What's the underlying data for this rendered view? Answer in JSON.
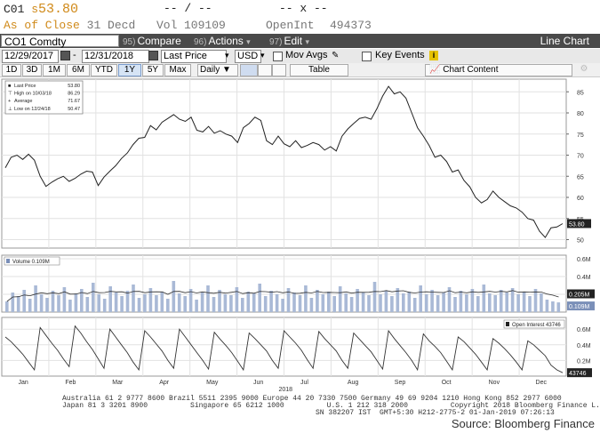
{
  "header": {
    "ticker": "C01",
    "price_prefix": "s",
    "price": "53.80",
    "change_dashes": "-- / --",
    "x_dashes": "-- x --",
    "asof_label": "As of Close",
    "asof_date": "31 Decd",
    "vol_label": "Vol",
    "vol_value": "109109",
    "openint_label": "OpenInt",
    "openint_value": "494373"
  },
  "menubar": {
    "security": "CO1 Comdty",
    "compare_num": "95)",
    "compare": "Compare",
    "actions_num": "96)",
    "actions": "Actions",
    "edit_num": "97)",
    "edit": "Edit",
    "view": "Line Chart"
  },
  "controls": {
    "start_date": "12/29/2017",
    "end_date": "12/31/2018",
    "field": "Last Price",
    "currency": "USD",
    "mov_avgs": "Mov Avgs",
    "key_events": "Key Events"
  },
  "periods": [
    "1D",
    "3D",
    "1M",
    "6M",
    "YTD",
    "1Y",
    "5Y",
    "Max"
  ],
  "selected_period": "1Y",
  "frequency": "Daily",
  "table_label": "Table",
  "chart_content_label": "Chart Content",
  "legend": {
    "last_price_label": "Last Price",
    "last_price": "53.80",
    "high_label": "High on 10/03/18",
    "high": "86.29",
    "avg_label": "Average",
    "avg": "71.67",
    "low_label": "Low on 12/24/18",
    "low": "50.47"
  },
  "volume_label": "Volume 0.109M",
  "oi_label": "Open Interest 43746",
  "current_price_tag": "53.80",
  "footer": {
    "line1": "Australia 61 2 9777 8600 Brazil 5511 2395 9000 Europe 44 20 7330 7500 Germany 49 69 9204 1210 Hong Kong 852 2977 6000",
    "line2": "Japan 81 3 3201 8900          Singapore 65 6212 1000          U.S. 1 212 318 2000          Copyright 2018 Bloomberg Finance L.P.",
    "line3": "SN 382207 IST  GMT+5:30 H212-2775-2 01-Jan-2019 07:26:13"
  },
  "source": "Source: Bloomberg Finance",
  "colors": {
    "price_line": "#222222",
    "volume_bar": "#a9b9d6",
    "menubar": "#4a4a4a",
    "amber": "#d08a1a"
  },
  "chart_data": [
    {
      "type": "line",
      "name": "Last Price",
      "x_labels": [
        "Jan",
        "Feb",
        "Mar",
        "Apr",
        "May",
        "Jun",
        "Jul",
        "Aug",
        "Sep",
        "Oct",
        "Nov",
        "Dec"
      ],
      "year_label": "2018",
      "y_ticks": [
        50,
        55,
        60,
        65,
        70,
        75,
        80,
        85
      ],
      "ylim": [
        48,
        88
      ],
      "values": [
        67.0,
        69.5,
        70.0,
        69.0,
        70.2,
        68.8,
        65.0,
        62.6,
        63.6,
        64.4,
        65.0,
        63.8,
        64.5,
        65.5,
        66.2,
        66.0,
        62.8,
        64.8,
        66.2,
        67.5,
        69.2,
        70.5,
        72.5,
        74.0,
        74.2,
        77.0,
        76.0,
        77.8,
        78.7,
        79.6,
        78.5,
        78.0,
        79.0,
        75.9,
        75.5,
        76.8,
        75.2,
        75.8,
        75.0,
        74.5,
        73.0,
        76.5,
        77.5,
        79.0,
        78.2,
        73.4,
        72.5,
        74.5,
        72.7,
        72.0,
        73.4,
        71.8,
        72.3,
        73.0,
        72.5,
        71.2,
        72.0,
        71.0,
        74.5,
        76.2,
        77.5,
        78.7,
        79.0,
        78.5,
        81.0,
        84.0,
        86.3,
        84.5,
        85.0,
        83.5,
        80.0,
        76.5,
        74.5,
        72.3,
        69.5,
        70.0,
        68.5,
        66.0,
        66.5,
        64.0,
        62.5,
        60.0,
        58.7,
        59.5,
        61.5,
        60.0,
        59.0,
        58.0,
        57.5,
        56.5,
        55.0,
        54.6,
        52.0,
        50.5,
        52.8,
        53.0,
        53.8
      ],
      "last": 53.8,
      "high": 86.29,
      "average": 71.67,
      "low": 50.47
    },
    {
      "type": "bar",
      "name": "Volume",
      "y_ticks": [
        "0.2M",
        "0.4M",
        "0.6M"
      ],
      "ylim": [
        0,
        0.6
      ],
      "reference_labels": [
        "0.205M",
        "0.109M"
      ],
      "values": [
        0.12,
        0.22,
        0.18,
        0.25,
        0.15,
        0.3,
        0.2,
        0.16,
        0.24,
        0.19,
        0.28,
        0.14,
        0.21,
        0.26,
        0.17,
        0.33,
        0.2,
        0.15,
        0.29,
        0.22,
        0.18,
        0.24,
        0.31,
        0.16,
        0.2,
        0.27,
        0.19,
        0.23,
        0.15,
        0.35,
        0.21,
        0.18,
        0.26,
        0.14,
        0.22,
        0.3,
        0.17,
        0.25,
        0.2,
        0.19,
        0.28,
        0.16,
        0.23,
        0.21,
        0.32,
        0.18,
        0.24,
        0.2,
        0.15,
        0.27,
        0.22,
        0.19,
        0.3,
        0.16,
        0.25,
        0.2,
        0.23,
        0.18,
        0.29,
        0.21,
        0.17,
        0.26,
        0.22,
        0.19,
        0.34,
        0.2,
        0.24,
        0.18,
        0.27,
        0.21,
        0.23,
        0.16,
        0.3,
        0.2,
        0.25,
        0.19,
        0.22,
        0.28,
        0.17,
        0.24,
        0.2,
        0.26,
        0.18,
        0.31,
        0.21,
        0.19,
        0.25,
        0.22,
        0.27,
        0.2,
        0.23,
        0.18,
        0.26,
        0.21,
        0.14,
        0.12,
        0.109
      ]
    },
    {
      "type": "line",
      "name": "Open Interest",
      "y_ticks": [
        "0.2M",
        "0.4M",
        "0.6M"
      ],
      "ylim": [
        0,
        0.75
      ],
      "reference_labels": [
        "43746"
      ],
      "values": [
        0.5,
        0.44,
        0.36,
        0.28,
        0.18,
        0.08,
        0.62,
        0.52,
        0.42,
        0.33,
        0.22,
        0.12,
        0.64,
        0.55,
        0.44,
        0.34,
        0.22,
        0.1,
        0.6,
        0.5,
        0.4,
        0.3,
        0.18,
        0.08,
        0.58,
        0.5,
        0.41,
        0.32,
        0.2,
        0.1,
        0.6,
        0.5,
        0.4,
        0.3,
        0.2,
        0.09,
        0.56,
        0.47,
        0.39,
        0.3,
        0.19,
        0.08,
        0.55,
        0.48,
        0.4,
        0.32,
        0.2,
        0.1,
        0.58,
        0.5,
        0.42,
        0.33,
        0.21,
        0.1,
        0.57,
        0.48,
        0.4,
        0.32,
        0.2,
        0.1,
        0.55,
        0.47,
        0.39,
        0.31,
        0.2,
        0.09,
        0.58,
        0.48,
        0.39,
        0.3,
        0.2,
        0.08,
        0.54,
        0.45,
        0.38,
        0.3,
        0.19,
        0.08,
        0.5,
        0.44,
        0.36,
        0.28,
        0.18,
        0.08,
        0.48,
        0.42,
        0.35,
        0.27,
        0.18,
        0.08,
        0.45,
        0.4,
        0.33,
        0.26,
        0.14,
        0.08,
        0.0437
      ]
    }
  ]
}
